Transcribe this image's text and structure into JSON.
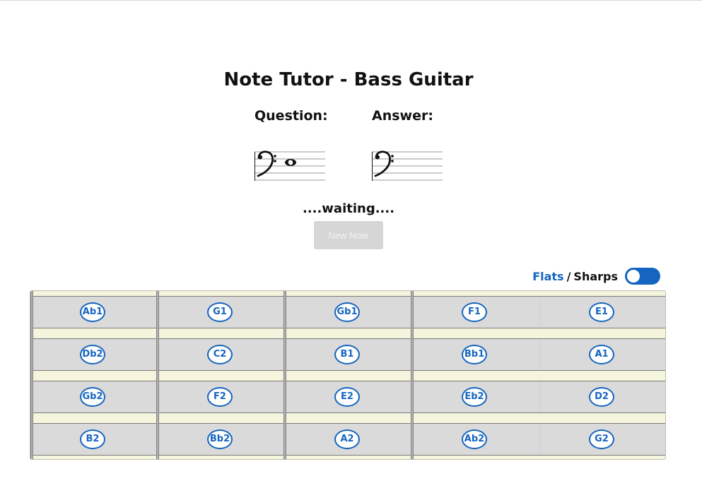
{
  "title": "Note Tutor - Bass Guitar",
  "question_label": "Question:",
  "answer_label": "Answer:",
  "status_text": "....waiting....",
  "new_note_label": "New Note",
  "toggle": {
    "flats_label": "Flats",
    "separator": "/",
    "sharps_label": "Sharps",
    "state": "flats"
  },
  "colors": {
    "accent": "#1565c0",
    "fretboard": "#f4f5dc",
    "string": "#dadada",
    "disabled_button": "#d6d6d6"
  },
  "fretboard": {
    "rows": [
      {
        "notes": [
          "Ab1",
          "G1",
          "Gb1",
          "F1",
          "E1"
        ]
      },
      {
        "notes": [
          "Db2",
          "C2",
          "B1",
          "Bb1",
          "A1"
        ]
      },
      {
        "notes": [
          "Gb2",
          "F2",
          "E2",
          "Eb2",
          "D2"
        ]
      },
      {
        "notes": [
          "B2",
          "Bb2",
          "A2",
          "Ab2",
          "G2"
        ]
      }
    ]
  }
}
